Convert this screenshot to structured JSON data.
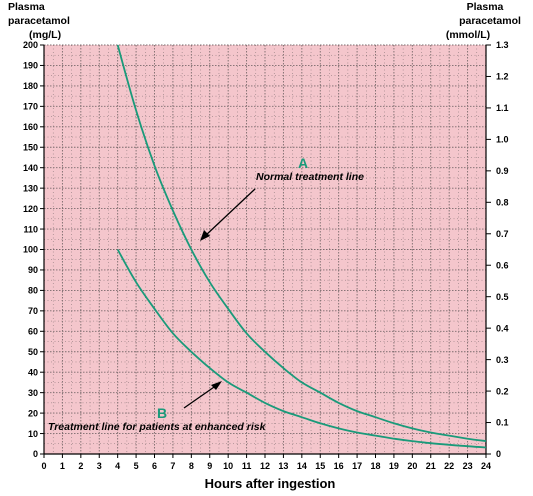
{
  "chart_data": {
    "type": "line",
    "x_label": "Hours after ingestion",
    "y_label_left": [
      "Plasma",
      "paracetamol",
      "(mg/L)"
    ],
    "y_label_right": [
      "Plasma",
      "paracetamol",
      "(mmol/L)"
    ],
    "xlim": [
      0,
      24
    ],
    "ylim_left": [
      0,
      200
    ],
    "ylim_right": [
      0,
      1.3
    ],
    "x_ticks": [
      "0",
      "1",
      "2",
      "3",
      "4",
      "5",
      "6",
      "7",
      "8",
      "9",
      "10",
      "11",
      "12",
      "13",
      "14",
      "15",
      "16",
      "17",
      "18",
      "19",
      "20",
      "21",
      "22",
      "23",
      "24"
    ],
    "y_ticks_left": [
      "0",
      "10",
      "20",
      "30",
      "40",
      "50",
      "60",
      "70",
      "80",
      "90",
      "100",
      "110",
      "120",
      "130",
      "140",
      "150",
      "160",
      "170",
      "180",
      "190",
      "200"
    ],
    "y_ticks_right": [
      "0",
      "0.1",
      "0.2",
      "0.3",
      "0.4",
      "0.5",
      "0.6",
      "0.7",
      "0.8",
      "0.9",
      "1.0",
      "1.1",
      "1.2",
      "1.3"
    ],
    "grid": true,
    "series": [
      {
        "marker": "A",
        "label": "Normal treatment line",
        "color": "#1a9a7a",
        "x": [
          4,
          5,
          6,
          7,
          8,
          9,
          10,
          11,
          12,
          13,
          14,
          15,
          16,
          17,
          18,
          19,
          20,
          21,
          22,
          23,
          24
        ],
        "y": [
          200,
          168,
          141,
          119,
          100,
          84,
          71,
          59,
          50,
          42,
          35,
          30,
          25,
          21,
          18,
          15,
          12.5,
          10.5,
          9,
          7.5,
          6.3
        ]
      },
      {
        "marker": "B",
        "label": "Treatment line for patients at enhanced risk",
        "color": "#1a9a7a",
        "x": [
          4,
          5,
          6,
          7,
          8,
          9,
          10,
          11,
          12,
          13,
          14,
          15,
          16,
          17,
          18,
          19,
          20,
          21,
          22,
          23,
          24
        ],
        "y": [
          100,
          84,
          71,
          59,
          50,
          42,
          35,
          30,
          25,
          21,
          18,
          15,
          12.5,
          10.5,
          9,
          7.5,
          6.3,
          5.3,
          4.5,
          3.8,
          3.2
        ]
      }
    ],
    "colors": {
      "background": "#f4c6cc",
      "grid": "#7a6a6c",
      "line": "#1a9a7a"
    }
  }
}
